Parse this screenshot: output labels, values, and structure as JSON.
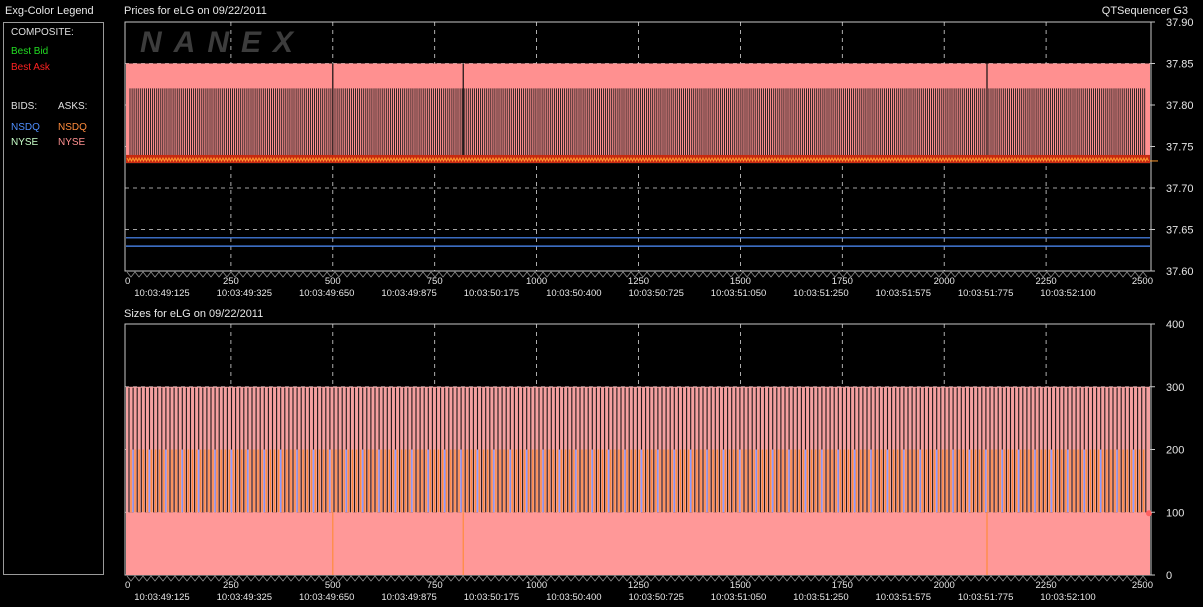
{
  "legend": {
    "title": "Exg-Color Legend",
    "composite_label": "COMPOSITE:",
    "best_bid": "Best Bid",
    "best_ask": "Best Ask",
    "bids_label": "BIDS:",
    "asks_label": "ASKS:",
    "bid_nsdq": "NSDQ",
    "bid_nyse": "NYSE",
    "ask_nsdq": "NSDQ",
    "ask_nyse": "NYSE",
    "colors": {
      "best_bid": "#22dd22",
      "best_ask": "#ff2222",
      "bid_nsdq": "#4f8fff",
      "bid_nyse": "#c8ffc8",
      "ask_nsdq": "#ff8c3c",
      "ask_nyse": "#ff9090"
    }
  },
  "app_title": "QTSequencer G3",
  "watermark": "NANEX",
  "chart_data": [
    {
      "type": "line",
      "title": "Prices for  eLG  on  09/22/2011",
      "x_ticks": [
        0,
        250,
        500,
        750,
        1000,
        1250,
        1500,
        1750,
        2000,
        2250,
        2500
      ],
      "time_labels": [
        "10:03:49:125",
        "10:03:49:325",
        "10:03:49:650",
        "10:03:49:875",
        "10:03:50:175",
        "10:03:50:400",
        "10:03:50:725",
        "10:03:51:050",
        "10:03:51:250",
        "10:03:51:575",
        "10:03:51:775",
        "10:03:52:100"
      ],
      "xlim": [
        0,
        2500
      ],
      "ylim": [
        37.6,
        37.9
      ],
      "y_ticks": [
        "37.60",
        "37.65",
        "37.70",
        "37.75",
        "37.80",
        "37.85",
        "37.90"
      ],
      "grid": true,
      "series": [
        {
          "name": "NYSE",
          "color": "#ff9090",
          "high": 37.85,
          "low": 37.73
        },
        {
          "name": "NSDQ",
          "color": "#ff8c3c",
          "high": 37.82,
          "low": 37.74
        },
        {
          "name": "Best Ask",
          "color": "#ff2222",
          "value": 37.735
        },
        {
          "name": "NSDQ",
          "color": "#4f8fff",
          "values": [
            37.63,
            37.64
          ]
        }
      ]
    },
    {
      "type": "bar",
      "title": "Sizes for  eLG  on  09/22/2011",
      "x_ticks": [
        0,
        250,
        500,
        750,
        1000,
        1250,
        1500,
        1750,
        2000,
        2250,
        2500
      ],
      "time_labels": [
        "10:03:49:125",
        "10:03:49:325",
        "10:03:49:650",
        "10:03:49:875",
        "10:03:50:175",
        "10:03:50:400",
        "10:03:50:725",
        "10:03:51:050",
        "10:03:51:250",
        "10:03:51:575",
        "10:03:51:775",
        "10:03:52:100"
      ],
      "xlim": [
        0,
        2500
      ],
      "ylim": [
        0,
        400
      ],
      "y_ticks": [
        "0",
        "100",
        "200",
        "300",
        "400"
      ],
      "grid": true,
      "series": [
        {
          "name": "NYSE",
          "color": "#ff9898",
          "values": [
            100,
            300
          ]
        },
        {
          "name": "NSDQ",
          "color": "#ff8c3c",
          "values": [
            100,
            200
          ]
        },
        {
          "name": "NSDQ",
          "color": "#8a9cff",
          "values": [
            100,
            200
          ]
        }
      ]
    }
  ]
}
